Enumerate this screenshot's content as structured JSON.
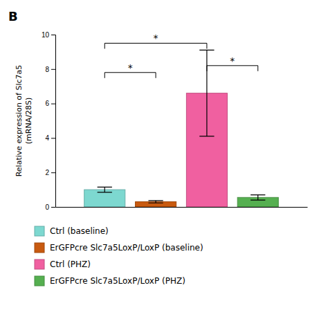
{
  "chart_data": {
    "type": "bar",
    "title": "B",
    "y_label": [
      "Relative expression of Slc7a5",
      "(mRNA/28S)"
    ],
    "categories": [
      null
    ],
    "series": [
      {
        "name": "Ctrl (baseline)",
        "color": "#7DD8D0",
        "values": [
          1.0
        ],
        "errors": [
          0.15
        ]
      },
      {
        "name": "ErGFPcre Slc7a5LoxP/LoxP (baseline)",
        "color": "#C85A10",
        "values": [
          0.3
        ],
        "errors": [
          0.07
        ]
      },
      {
        "name": "Ctrl (PHZ)",
        "color": "#F060A0",
        "values": [
          6.6
        ],
        "errors": [
          2.5
        ]
      },
      {
        "name": "ErGFPcre Slc7a5LoxP/LoxP (PHZ)",
        "color": "#55AF50",
        "values": [
          0.55
        ],
        "errors": [
          0.15
        ]
      }
    ],
    "annotations": [
      {
        "text": "*",
        "between": [
          0,
          2
        ],
        "y": 9.5
      },
      {
        "text": "*",
        "between": [
          0,
          1
        ],
        "y": 7.8
      },
      {
        "text": "*",
        "between": [
          2,
          3
        ],
        "y": 8.2
      }
    ],
    "ylim": [
      0,
      10
    ],
    "yticks": [
      0,
      2,
      4,
      6,
      8,
      10
    ],
    "grid": false,
    "legend": "bottom",
    "tick_labels": "y"
  }
}
